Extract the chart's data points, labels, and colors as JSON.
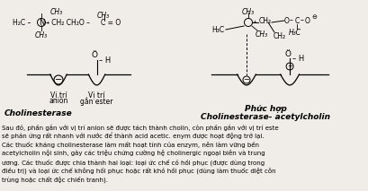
{
  "bg_color": "#f0ede8",
  "title_left": "Cholinesterase",
  "title_right_line1": "Phức hợp",
  "title_right_line2": "Cholinesterase- acetylcholin",
  "body_text_lines": [
    "Sau đó, phần gắn với vị trí anion sẽ được tách thành cholin, còn phần gắn với vị trí este",
    "sẽ phản ứng rất nhanh với nước để thành acid acetic. enym được hoạt động trở lại.",
    "Các thuốc kháng cholinesterase làm mất hoạt tính của enzym, nên làm vững bền",
    "acetylcholin nội sinh, gây các triệu chứng cường hệ cholinergic ngoại biên và trung",
    "ương. Các thuốc được chia thành hai loại: loại ức chế có hồi phục (được dùng trong",
    "điều trị) và loại ức chế không hồi phục hoặc rất khó hồi phục (dùng làm thuốc diệt côn",
    "trùng hoặc chất độc chiến tranh)."
  ]
}
